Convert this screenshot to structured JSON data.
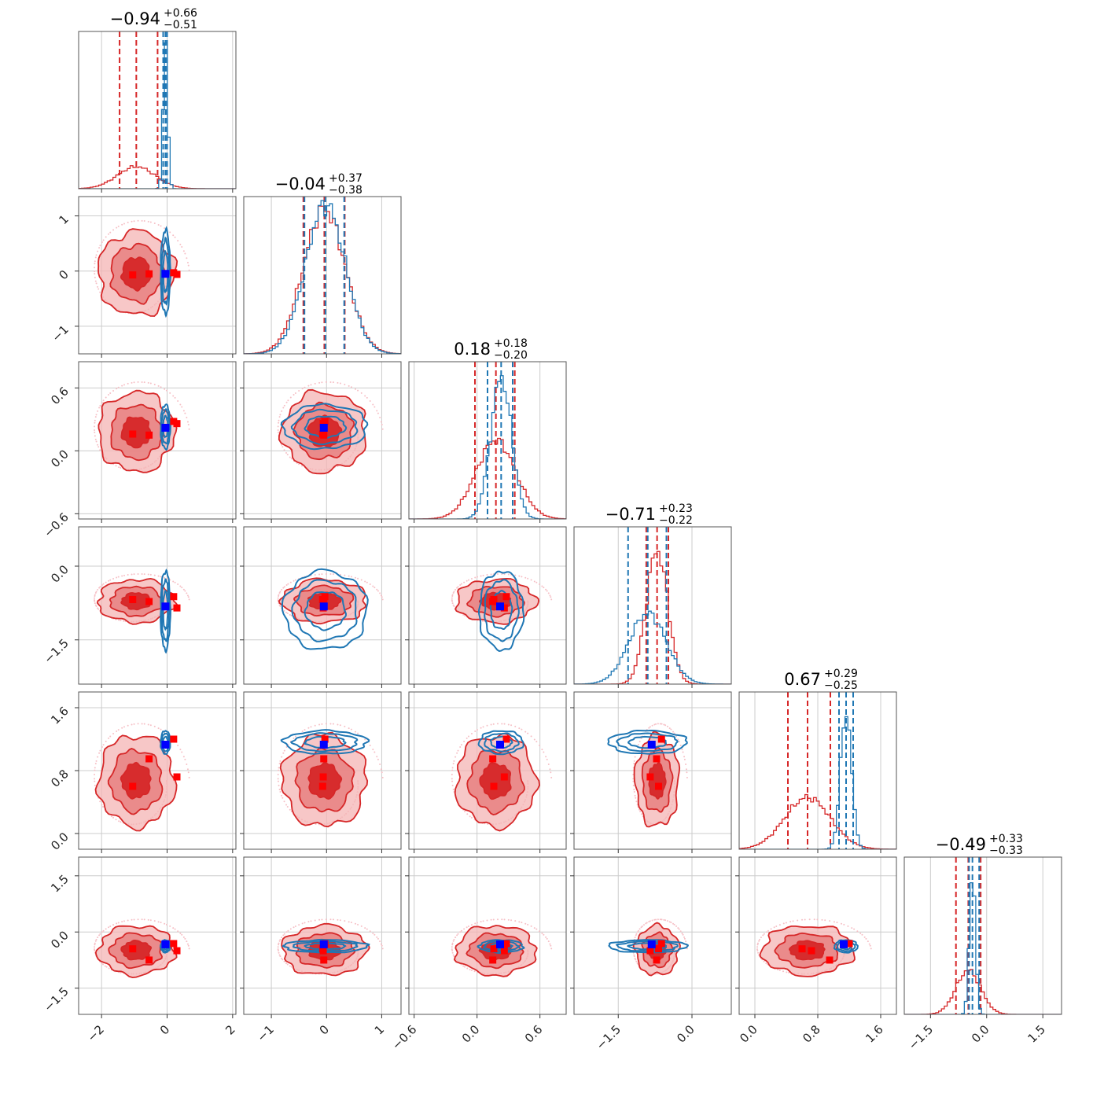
{
  "chart_data": {
    "type": "corner",
    "colors": {
      "red": "#d62728",
      "blue": "#1f77b4",
      "marker_blue": "#0000ff",
      "marker_red": "#ff0000"
    },
    "series": [
      {
        "color": "red"
      },
      {
        "color": "blue"
      }
    ],
    "parameters": [
      {
        "title_value": "−0.94",
        "title_plus": "+0.66",
        "title_minus": "−0.51",
        "range": [
          -2.7,
          2.1
        ],
        "ticks": [
          -2,
          0,
          2
        ],
        "tick_labels": [
          "−2",
          "0",
          "2"
        ],
        "red": {
          "mean": -0.94,
          "sd": 0.58,
          "quantiles": [
            -1.45,
            -0.29
          ],
          "peak": 0.14
        },
        "blue": {
          "mean": -0.05,
          "sd": 0.07,
          "quantiles": [
            -0.12,
            0.0
          ],
          "peak": 0.9
        }
      },
      {
        "title_value": "−0.04",
        "title_plus": "+0.37",
        "title_minus": "−0.38",
        "range": [
          -1.5,
          1.35
        ],
        "ticks": [
          -1,
          0,
          1
        ],
        "tick_labels": [
          "−1",
          "0",
          "1"
        ],
        "red": {
          "mean": -0.04,
          "sd": 0.38,
          "quantiles": [
            -0.42,
            0.33
          ],
          "peak": 0.92
        },
        "blue": {
          "mean": -0.02,
          "sd": 0.36,
          "quantiles": [
            -0.4,
            0.32
          ],
          "peak": 0.95
        }
      },
      {
        "title_value": "0.18",
        "title_plus": "+0.18",
        "title_minus": "−0.20",
        "range": [
          -0.65,
          0.85
        ],
        "ticks": [
          -0.6,
          0.0,
          0.6
        ],
        "tick_labels": [
          "−0.6",
          "0.0",
          "0.6"
        ],
        "red": {
          "mean": 0.18,
          "sd": 0.19,
          "quantiles": [
            -0.02,
            0.36
          ],
          "peak": 0.5
        },
        "blue": {
          "mean": 0.23,
          "sd": 0.1,
          "quantiles": [
            0.1,
            0.34
          ],
          "peak": 0.9
        }
      },
      {
        "title_value": "−0.71",
        "title_plus": "+0.23",
        "title_minus": "−0.22",
        "range": [
          -2.4,
          0.8
        ],
        "ticks": [
          -1.5,
          0.0
        ],
        "tick_labels": [
          "−1.5",
          "0.0"
        ],
        "red": {
          "mean": -0.71,
          "sd": 0.22,
          "quantiles": [
            -0.93,
            -0.48
          ],
          "peak": 0.85
        },
        "blue": {
          "mean": -0.9,
          "sd": 0.38,
          "quantiles": [
            -1.3,
            -0.52
          ],
          "peak": 0.45
        }
      },
      {
        "title_value": "0.67",
        "title_plus": "+0.29",
        "title_minus": "−0.25",
        "range": [
          -0.2,
          1.8
        ],
        "ticks": [
          0.0,
          0.8,
          1.6
        ],
        "tick_labels": [
          "0.0",
          "0.8",
          "1.6"
        ],
        "red": {
          "mean": 0.67,
          "sd": 0.29,
          "quantiles": [
            0.42,
            0.96
          ],
          "peak": 0.33
        },
        "blue": {
          "mean": 1.16,
          "sd": 0.07,
          "quantiles": [
            1.07,
            1.25
          ],
          "peak": 0.88
        }
      },
      {
        "title_value": "−0.49",
        "title_plus": "+0.33",
        "title_minus": "−0.33",
        "range": [
          -2.2,
          2.0
        ],
        "ticks": [
          -1.5,
          0.0,
          1.5
        ],
        "tick_labels": [
          "−1.5",
          "0.0",
          "1.5"
        ],
        "red": {
          "mean": -0.49,
          "sd": 0.33,
          "quantiles": [
            -0.82,
            -0.16
          ],
          "peak": 0.28
        },
        "blue": {
          "mean": -0.38,
          "sd": 0.08,
          "quantiles": [
            -0.47,
            -0.2
          ],
          "peak": 0.92
        }
      }
    ],
    "y_ticks": [
      null,
      {
        "ticks": [
          -1,
          0,
          1
        ],
        "tick_labels": [
          "−1",
          "0",
          "1"
        ]
      },
      {
        "ticks": [
          -0.6,
          0.0,
          0.6
        ],
        "tick_labels": [
          "−0.6",
          "0.0",
          "0.6"
        ]
      },
      {
        "ticks": [
          -1.5,
          0.0
        ],
        "tick_labels": [
          "−1.5",
          "0.0"
        ]
      },
      {
        "ticks": [
          0.0,
          0.8,
          1.6
        ],
        "tick_labels": [
          "0.0",
          "0.8",
          "1.6"
        ]
      },
      {
        "ticks": [
          -1.5,
          0.0,
          1.5
        ],
        "tick_labels": [
          "−1.5",
          "0.0",
          "1.5"
        ]
      }
    ],
    "blue_marker": [
      -0.05,
      -0.05,
      0.22,
      -0.82,
      1.13,
      -0.33
    ],
    "red_markers": [
      [
        -1.05,
        -0.07,
        0.16,
        -0.68,
        0.6,
        -0.45
      ],
      [
        -0.55,
        -0.05,
        0.15,
        -0.72,
        0.95,
        -0.75
      ],
      [
        0.2,
        -0.03,
        0.28,
        -0.62,
        1.2,
        -0.31
      ],
      [
        0.3,
        -0.06,
        0.26,
        -0.85,
        0.72,
        -0.5
      ]
    ],
    "grid": true
  }
}
